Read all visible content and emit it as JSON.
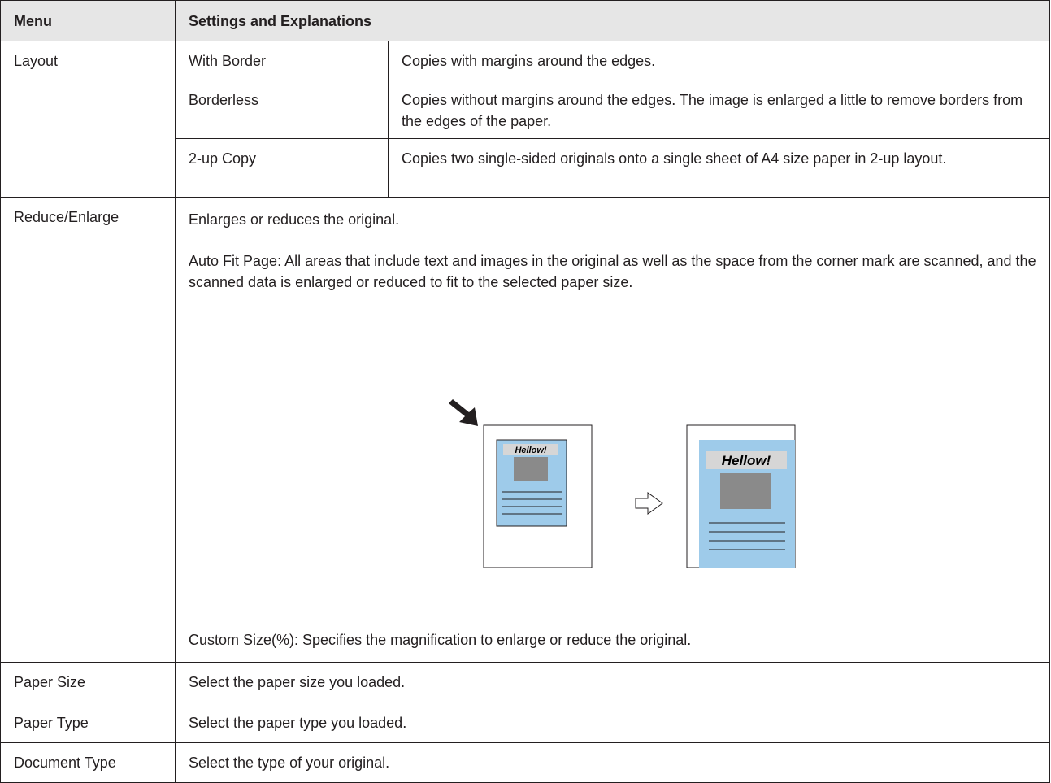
{
  "header": {
    "menu": "Menu",
    "settings": "Settings and Explanations"
  },
  "rows": [
    {
      "menu": "Layout",
      "options": [
        {
          "name": "With Border",
          "text": "Copies with margins around the edges."
        },
        {
          "name": "Borderless",
          "text": "Copies without margins around the edges. The image is enlarged a little to remove borders from the edges of the paper."
        },
        {
          "name": "2-up Copy",
          "text": "Copies two single-sided originals onto a single sheet of A4 size paper in 2-up layout."
        }
      ]
    },
    {
      "menu": "Reduce/Enlarge",
      "paragraphs": [
        "Enlarges or reduces the original.",
        "Auto Fit Page: All areas that include text and images in the original as well as the space from the corner mark are scanned, and the scanned data is enlarged or reduced to fit to the selected paper size."
      ],
      "illustration": {
        "before_label": "Hellow!",
        "after_label": "Hellow!"
      },
      "note": "Custom Size(%): Specifies the magnification to enlarge or reduce the original."
    },
    {
      "menu": "Paper Size",
      "text": "Select the paper size you loaded."
    },
    {
      "menu": "Paper Type",
      "text": "Select the paper type you loaded."
    },
    {
      "menu": "Document Type",
      "text": "Select the type of your original."
    }
  ]
}
